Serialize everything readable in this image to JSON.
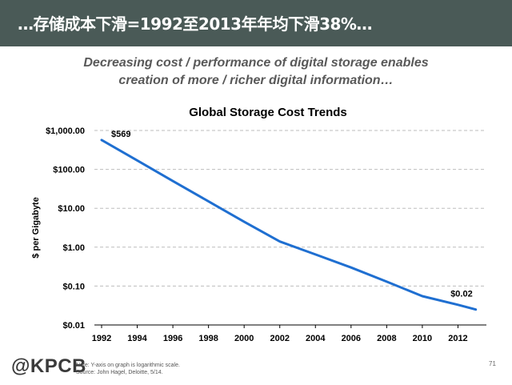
{
  "header": {
    "title": "…存储成本下滑=1992至2013年年均下滑38%…",
    "background": "#4a5a57"
  },
  "subtitle": {
    "line1": "Decreasing cost / performance of digital storage enables",
    "line2": "creation of more / richer digital information…"
  },
  "chart_data": {
    "type": "line",
    "title": "Global Storage Cost Trends",
    "ylabel": "$ per Gigabyte",
    "xlabel": "",
    "yscale": "log",
    "ylim": [
      0.01,
      1000
    ],
    "yticks": [
      {
        "value": 1000,
        "label": "$1,000.00"
      },
      {
        "value": 100,
        "label": "$100.00"
      },
      {
        "value": 10,
        "label": "$10.00"
      },
      {
        "value": 1,
        "label": "$1.00"
      },
      {
        "value": 0.1,
        "label": "$0.10"
      },
      {
        "value": 0.01,
        "label": "$0.01"
      }
    ],
    "xlim": [
      1992,
      2014
    ],
    "xticks": [
      1992,
      1994,
      1996,
      1998,
      2000,
      2002,
      2004,
      2006,
      2008,
      2010,
      2012
    ],
    "grid": true,
    "series": [
      {
        "name": "$ per Gigabyte",
        "color": "#1f6fd1",
        "x": [
          1992,
          1994,
          1996,
          1998,
          2000,
          2002,
          2004,
          2006,
          2008,
          2010,
          2012,
          2013
        ],
        "y": [
          569,
          170,
          50,
          15,
          4.5,
          1.4,
          0.65,
          0.3,
          0.13,
          0.055,
          0.033,
          0.025
        ]
      }
    ],
    "annotations": [
      {
        "x": 1992,
        "y": 569,
        "label": "$569"
      },
      {
        "x": 2013,
        "y": 0.025,
        "label": "$0.02"
      }
    ]
  },
  "footer": {
    "logo": "@KPCB",
    "note1": "Note: Y-axis on graph is logarithmic scale.",
    "note2": "Source: John Hagel, Deloitte, 5/14.",
    "page_number": "71"
  }
}
